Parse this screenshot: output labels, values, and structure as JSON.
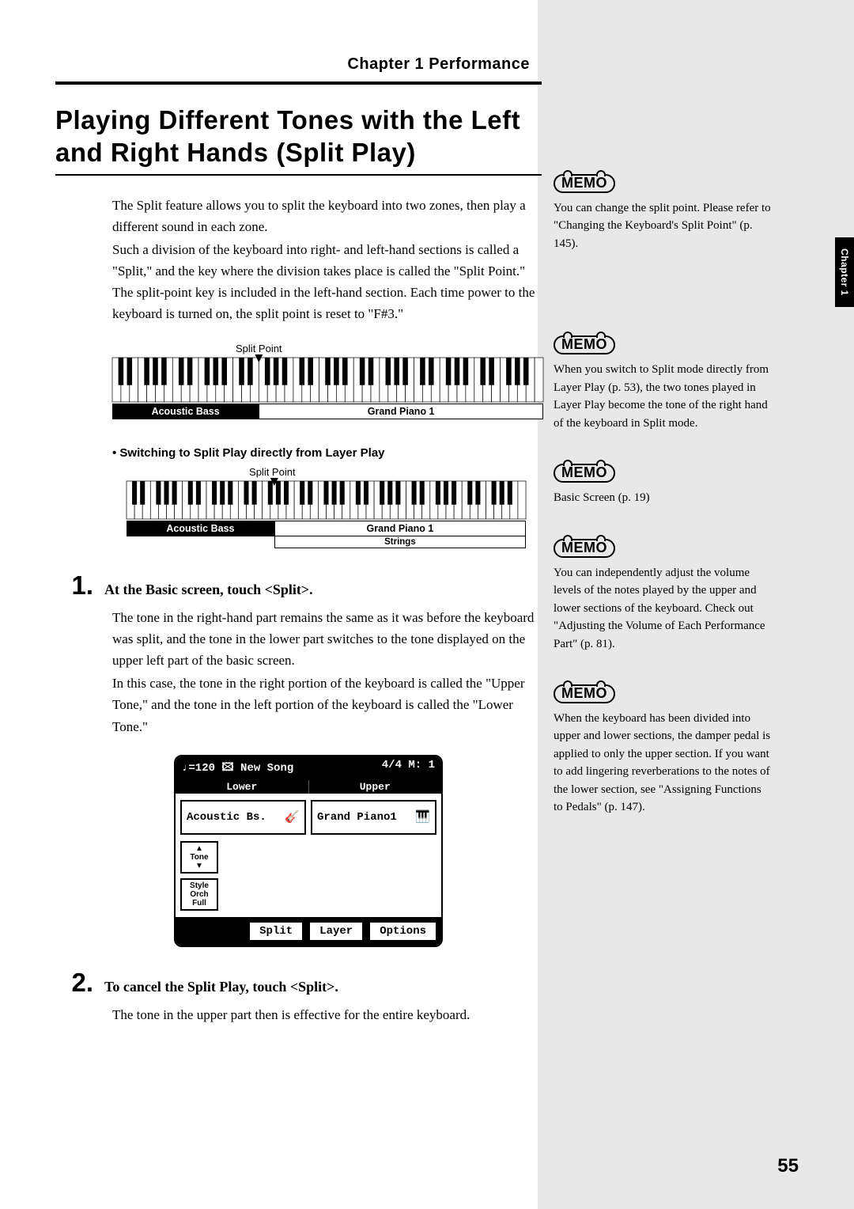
{
  "chapter_header": "Chapter 1 Performance",
  "chapter_tab": "Chapter 1",
  "section_title": "Playing Different Tones with the Left and Right Hands (Split Play)",
  "intro": {
    "p1": "The Split feature allows you to split the keyboard into two zones, then play a different sound in each zone.",
    "p2": "Such a division of the keyboard into right- and left-hand sections is called a \"Split,\" and the key where the division takes place is called the \"Split Point.\" The split-point key is included in the left-hand section. Each time power to the keyboard is turned on, the split point is reset to \"F#3.\""
  },
  "keyboard1": {
    "split_caption": "Split Point",
    "left_label": "Acoustic Bass",
    "right_label": "Grand Piano 1",
    "split_ratio": 0.34,
    "octaves": 7
  },
  "layer_heading": "• Switching to Split Play directly from Layer Play",
  "keyboard2": {
    "split_caption": "Split Point",
    "left_label": "Acoustic Bass",
    "right_label": "Grand Piano 1",
    "strings_label": "Strings",
    "split_ratio": 0.37,
    "octaves": 7
  },
  "step1": {
    "num": "1.",
    "heading": "At the Basic screen, touch <Split>.",
    "p1": "The tone in the right-hand part remains the same as it was before the keyboard was split, and the tone in the lower part switches to the tone displayed on the upper left part of the basic screen.",
    "p2": "In this case, the tone in the right portion of the keyboard is called the \"Upper Tone,\" and the tone in the left portion of the keyboard is called the \"Lower Tone.\""
  },
  "screen": {
    "top_left": "♩=120 🖾 New Song",
    "top_right": "4/4   M:   1",
    "lower": "Lower",
    "upper": "Upper",
    "lower_tone": "Acoustic Bs.",
    "upper_tone": "Grand Piano1",
    "tone_btn": "▲\nTone\n▼",
    "style_btn": "Style\nOrch\nFull",
    "split_btn": "Split",
    "layer_btn": "Layer",
    "options_btn": "Options"
  },
  "step2": {
    "num": "2.",
    "heading": "To cancel the Split Play, touch <Split>.",
    "p1": "The tone in the upper part then is effective for the entire keyboard."
  },
  "memos": {
    "m1": "You can change the split point. Please refer to \"Changing the Keyboard's Split Point\" (p. 145).",
    "m2": "When you switch to Split mode directly from Layer Play (p. 53), the two tones played in Layer Play become the tone of the right hand of the keyboard in Split mode.",
    "m3": "Basic Screen (p. 19)",
    "m4": "You can independently adjust the volume levels of the notes played by the upper and lower sections of the keyboard. Check out \"Adjusting the Volume of Each Performance Part\" (p. 81).",
    "m5": "When the keyboard has been divided into upper and lower sections, the damper pedal is applied to only the upper section. If you want to add lingering reverberations to the notes of the lower section, see \"Assigning Functions to Pedals\" (p. 147)."
  },
  "page_number": "55",
  "memo_label": "MEMO"
}
